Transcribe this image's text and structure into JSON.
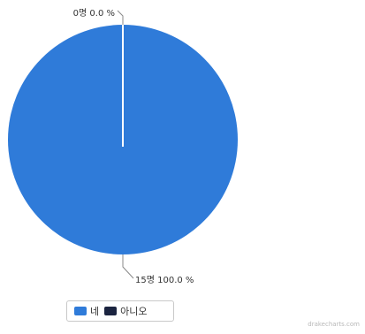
{
  "chart_data": {
    "type": "pie",
    "title": "",
    "slices": [
      {
        "label": "네",
        "value": 15,
        "percent": 100.0,
        "data_label": "15명 100.0 %",
        "color": "#2f7bd9"
      },
      {
        "label": "아니오",
        "value": 0,
        "percent": 0.0,
        "data_label": "0명 0.0 %",
        "color": "#1b2440"
      }
    ],
    "legend": {
      "placement": "bottom-left"
    }
  },
  "watermark": "drakecharts.com"
}
